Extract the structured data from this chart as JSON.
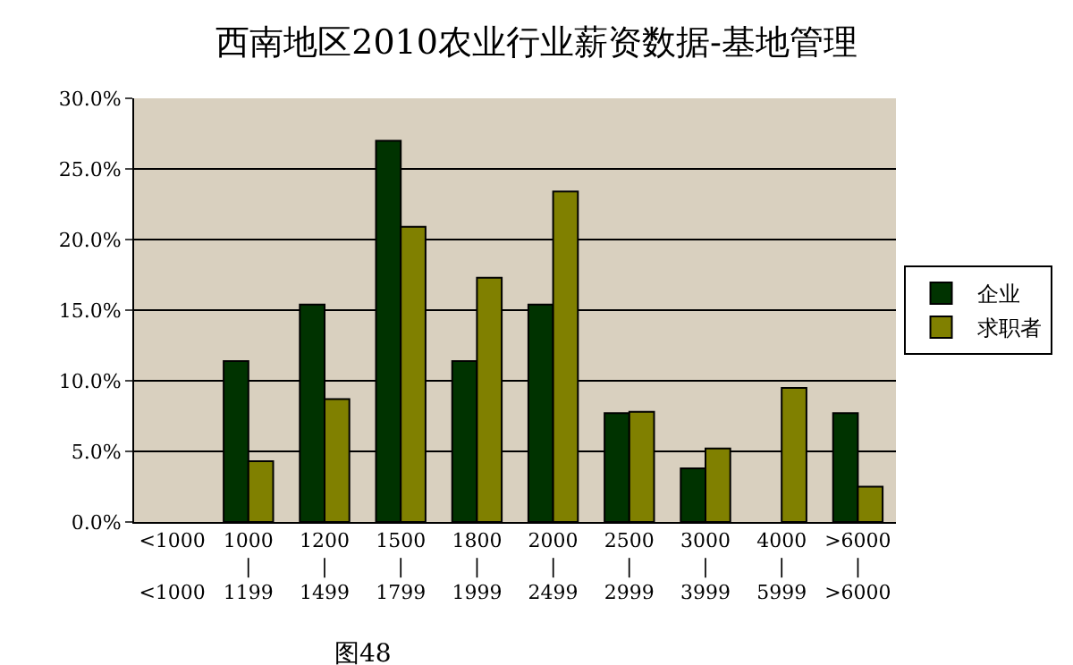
{
  "chart_data": {
    "type": "bar",
    "title": "西南地区2010农业行业薪资数据-基地管理",
    "categories": [
      "<1000\n\n<1000",
      "1000\n|\n1199",
      "1200\n|\n1499",
      "1500\n|\n1799",
      "1800\n|\n1999",
      "2000\n|\n2499",
      "2500\n|\n2999",
      "3000\n|\n3999",
      "4000\n|\n5999",
      ">6000\n|\n>6000"
    ],
    "series": [
      {
        "name": "企业",
        "color": "#003300",
        "values": [
          null,
          11.4,
          15.4,
          27.0,
          11.4,
          15.4,
          7.7,
          3.8,
          null,
          7.7
        ]
      },
      {
        "name": "求职者",
        "color": "#808000",
        "values": [
          null,
          4.3,
          8.7,
          20.9,
          17.3,
          23.4,
          7.8,
          5.2,
          9.5,
          2.5
        ]
      }
    ],
    "ylim": [
      0,
      30
    ],
    "yticks": [
      {
        "value": 0,
        "label": "0.0%"
      },
      {
        "value": 5,
        "label": "5.0%"
      },
      {
        "value": 10,
        "label": "10.0%"
      },
      {
        "value": 15,
        "label": "15.0%"
      },
      {
        "value": 20,
        "label": "20.0%"
      },
      {
        "value": 25,
        "label": "25.0%"
      },
      {
        "value": 30,
        "label": "30.0%"
      }
    ],
    "grid": "y",
    "legend": "right",
    "annotations": [
      "图48"
    ]
  }
}
